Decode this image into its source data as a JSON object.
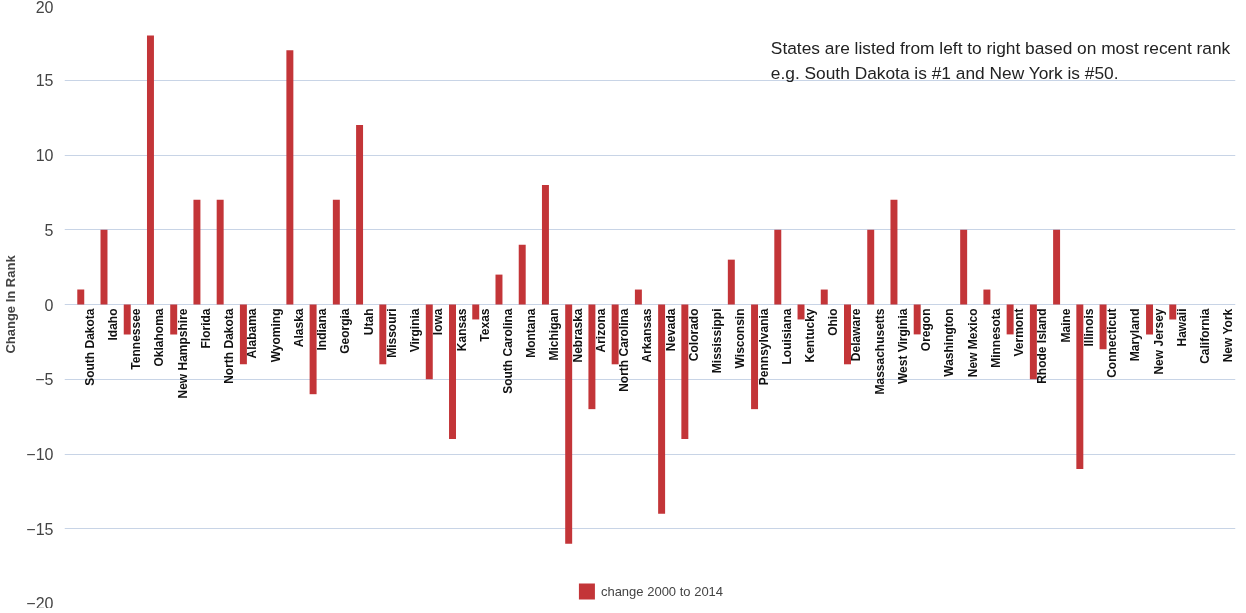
{
  "chart_data": {
    "type": "bar",
    "ylabel": "Change In Rank",
    "categories": [
      "South Dakota",
      "Idaho",
      "Tennessee",
      "Oklahoma",
      "New Hampshire",
      "Florida",
      "North Dakota",
      "Alabama",
      "Wyoming",
      "Alaska",
      "Indiana",
      "Georgia",
      "Utah",
      "Missouri",
      "Virginia",
      "Iowa",
      "Kansas",
      "Texas",
      "South Carolina",
      "Montana",
      "Michigan",
      "Nebraska",
      "Arizona",
      "North Carolina",
      "Arkansas",
      "Nevada",
      "Colorado",
      "Mississippi",
      "Wisconsin",
      "Pennsylvania",
      "Louisiana",
      "Kentucky",
      "Ohio",
      "Delaware",
      "Massachusetts",
      "West Virginia",
      "Oregon",
      "Washington",
      "New Mexico",
      "Minnesota",
      "Vermont",
      "Rhode Island",
      "Maine",
      "Illinois",
      "Connecticut",
      "Maryland",
      "New Jersey",
      "Hawaii",
      "California",
      "New York"
    ],
    "series": [
      {
        "name": "change 2000 to 2014",
        "color": "#c33538",
        "values": [
          1,
          5,
          -2,
          18,
          -2,
          7,
          7,
          -4,
          0,
          17,
          -6,
          7,
          12,
          -4,
          0,
          -5,
          -9,
          -1,
          2,
          4,
          8,
          -16,
          -7,
          -4,
          1,
          -14,
          -9,
          0,
          3,
          -7,
          5,
          -1,
          1,
          -4,
          5,
          7,
          -2,
          0,
          5,
          1,
          -2,
          -5,
          5,
          -11,
          -3,
          0,
          -2,
          -1,
          0,
          0
        ]
      }
    ],
    "ylim": [
      -20,
      20
    ],
    "yticks": [
      -20,
      -15,
      -10,
      -5,
      0,
      5,
      10,
      15,
      20
    ],
    "grid": "y",
    "legend": "bottom",
    "annotations": [
      "States are listed from left to right based on most recent rank",
      "e.g. South Dakota is #1 and New York is #50."
    ]
  }
}
